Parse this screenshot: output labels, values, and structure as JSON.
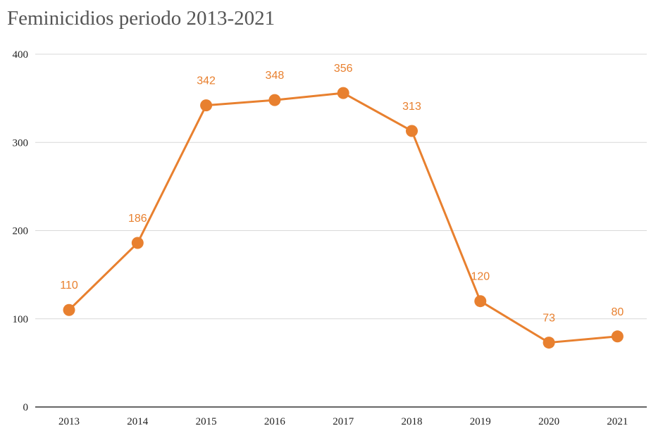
{
  "chart_data": {
    "type": "line",
    "title": "Feminicidios periodo 2013-2021",
    "categories": [
      "2013",
      "2014",
      "2015",
      "2016",
      "2017",
      "2018",
      "2019",
      "2020",
      "2021"
    ],
    "values": [
      110,
      186,
      342,
      348,
      356,
      313,
      120,
      73,
      80
    ],
    "ylim": [
      0,
      400
    ],
    "yticks": [
      0,
      100,
      200,
      300,
      400
    ],
    "grid": true,
    "legend": "none",
    "color": "#E8802F"
  }
}
